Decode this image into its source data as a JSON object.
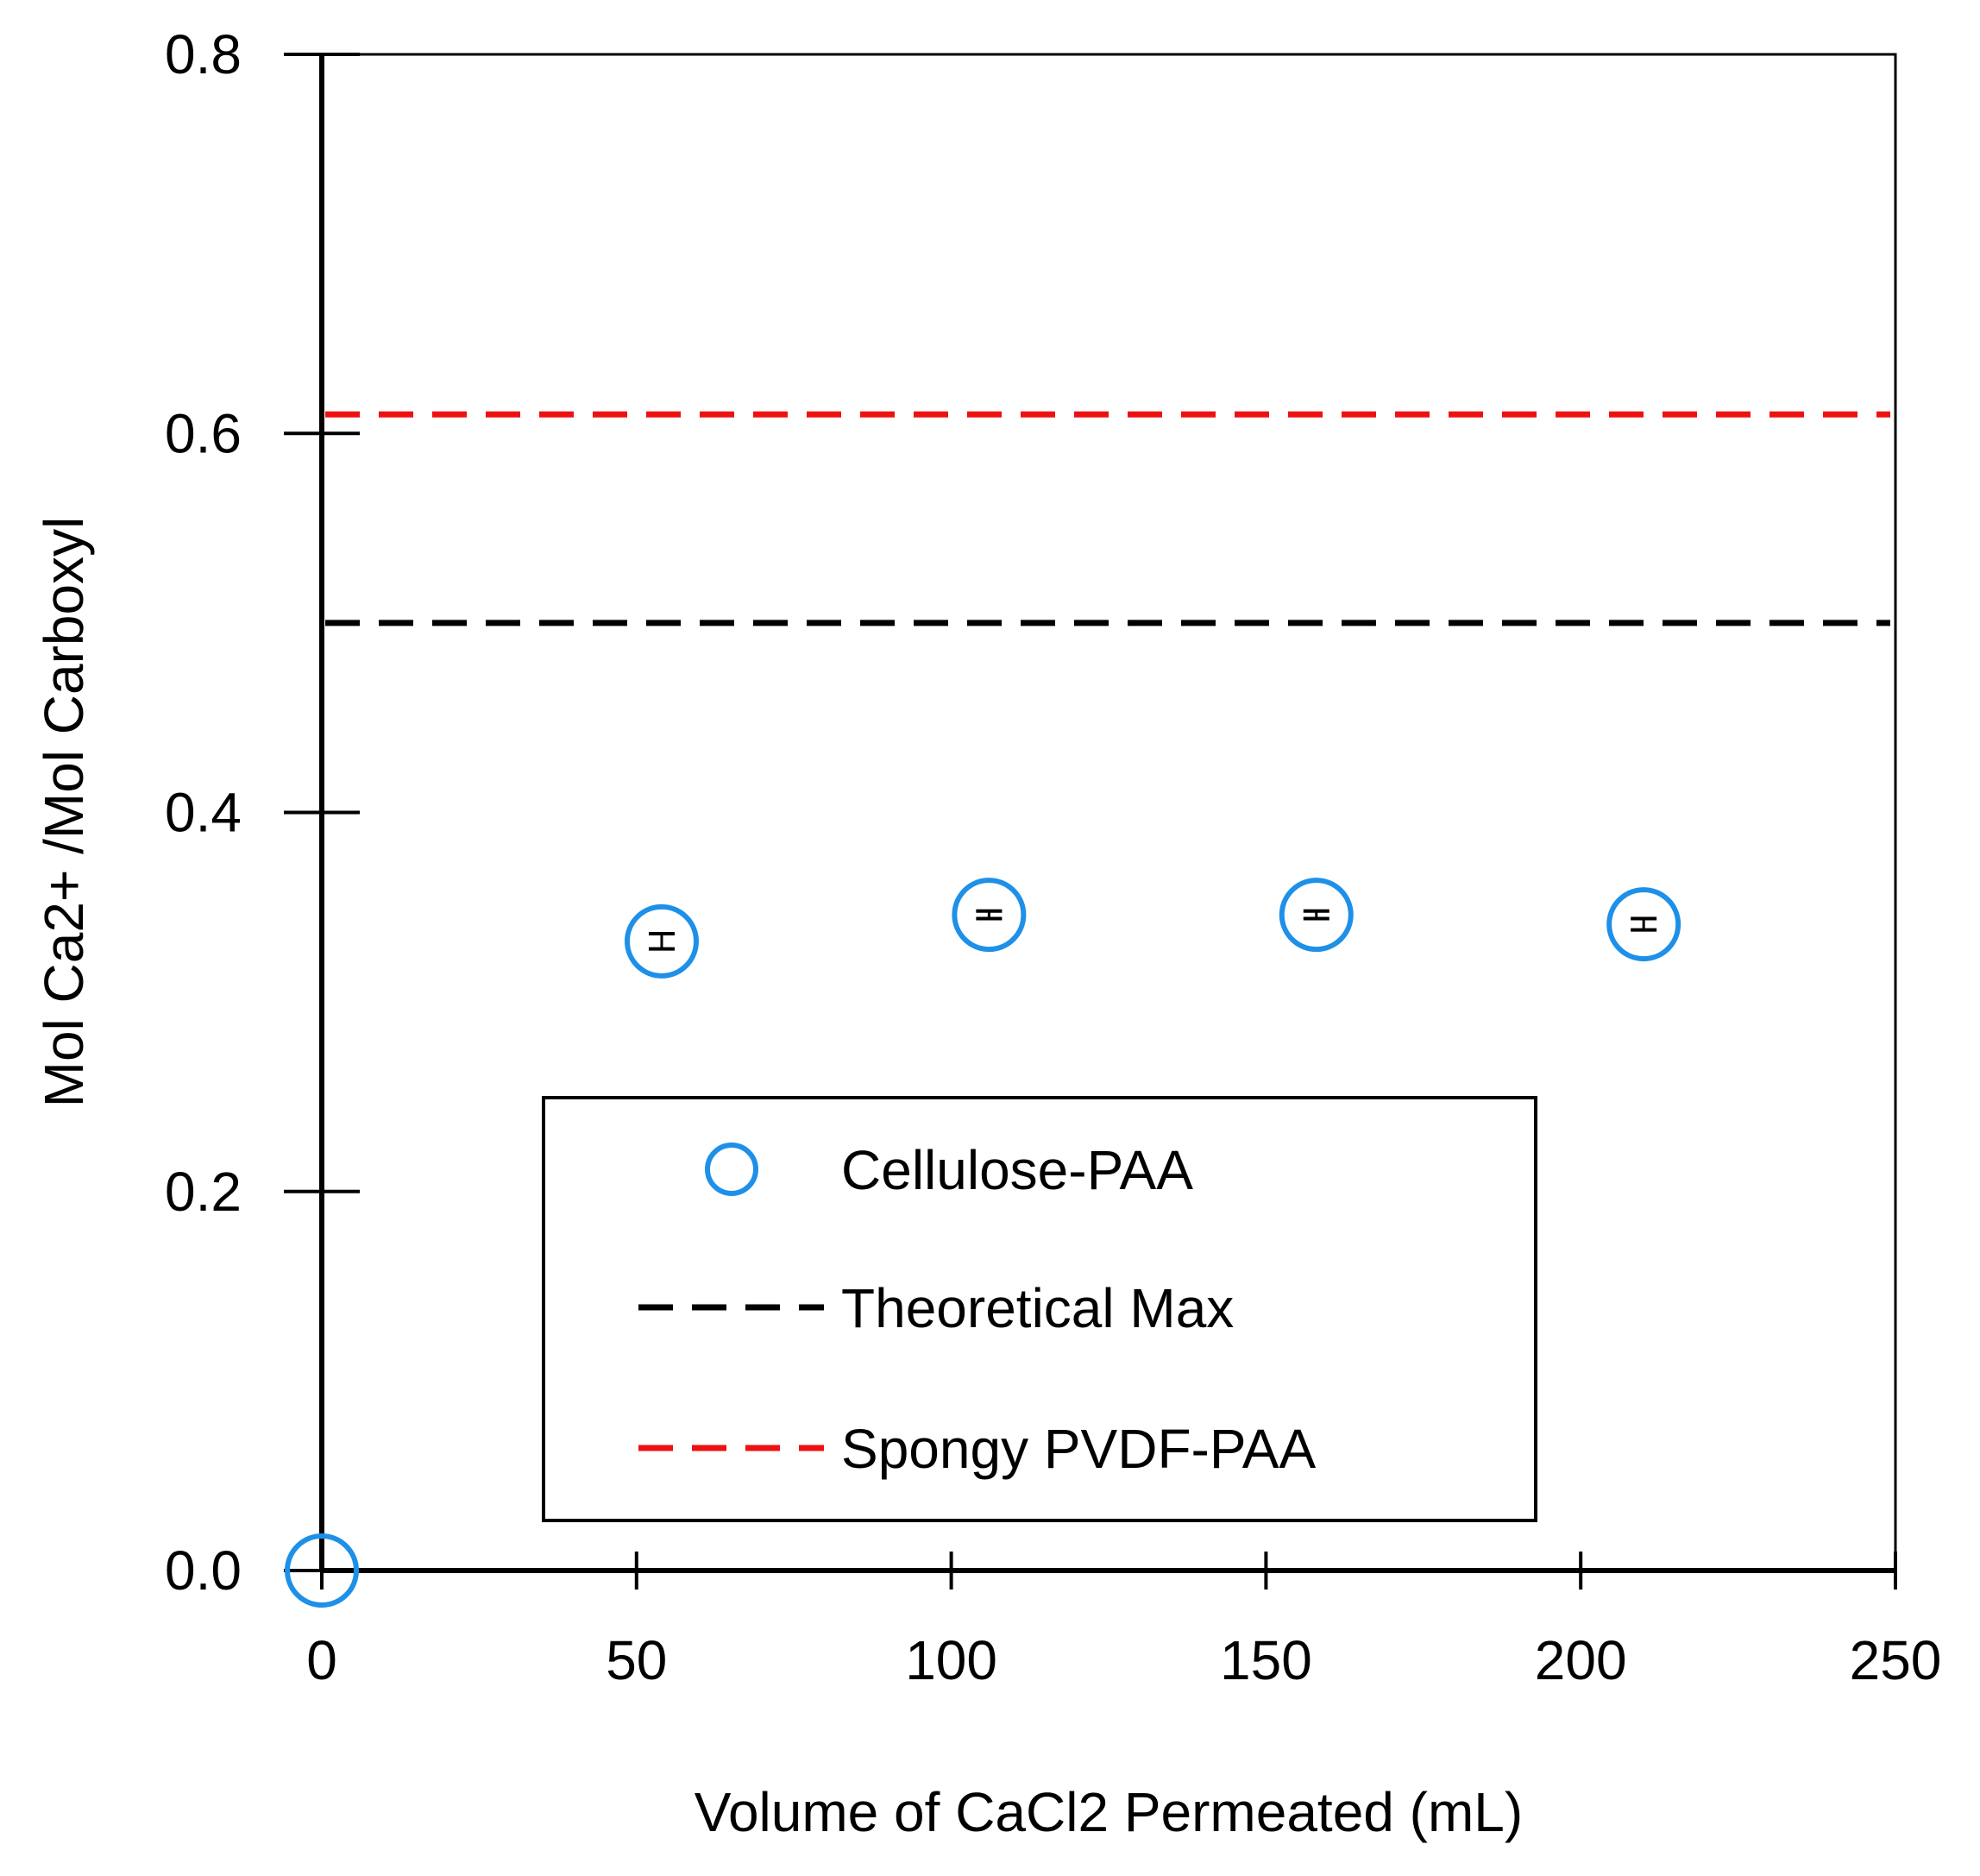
{
  "chart_data": {
    "type": "scatter",
    "title": "",
    "xlabel": "Volume of CaCl2 Permeated (mL)",
    "ylabel": "Mol Ca2+ /Mol Carboxyl",
    "xlim": [
      0,
      250
    ],
    "ylim": [
      0,
      0.8
    ],
    "xticks": [
      0,
      50,
      100,
      150,
      200,
      250
    ],
    "yticks": [
      0.0,
      0.2,
      0.4,
      0.6,
      0.8
    ],
    "xtick_labels": [
      "0",
      "50",
      "100",
      "150",
      "200",
      "250"
    ],
    "ytick_labels": [
      "0.0",
      "0.2",
      "0.4",
      "0.6",
      "0.8"
    ],
    "grid": false,
    "legend_position": "bottom-center",
    "series": [
      {
        "name": "Cellulose-PAA",
        "kind": "scatter",
        "marker": "open-circle",
        "color": "#1e90e8",
        "x": [
          0,
          54,
          106,
          158,
          210
        ],
        "y": [
          0.0,
          0.332,
          0.346,
          0.346,
          0.341
        ],
        "err": [
          0,
          0.004,
          0.002,
          0.002,
          0.003
        ]
      },
      {
        "name": "Theoretical Max",
        "kind": "hline",
        "style": "dashed",
        "color": "#000000",
        "y": 0.5
      },
      {
        "name": "Spongy PVDF-PAA",
        "kind": "hline",
        "style": "dashed",
        "color": "#ee1111",
        "y": 0.61
      }
    ]
  }
}
